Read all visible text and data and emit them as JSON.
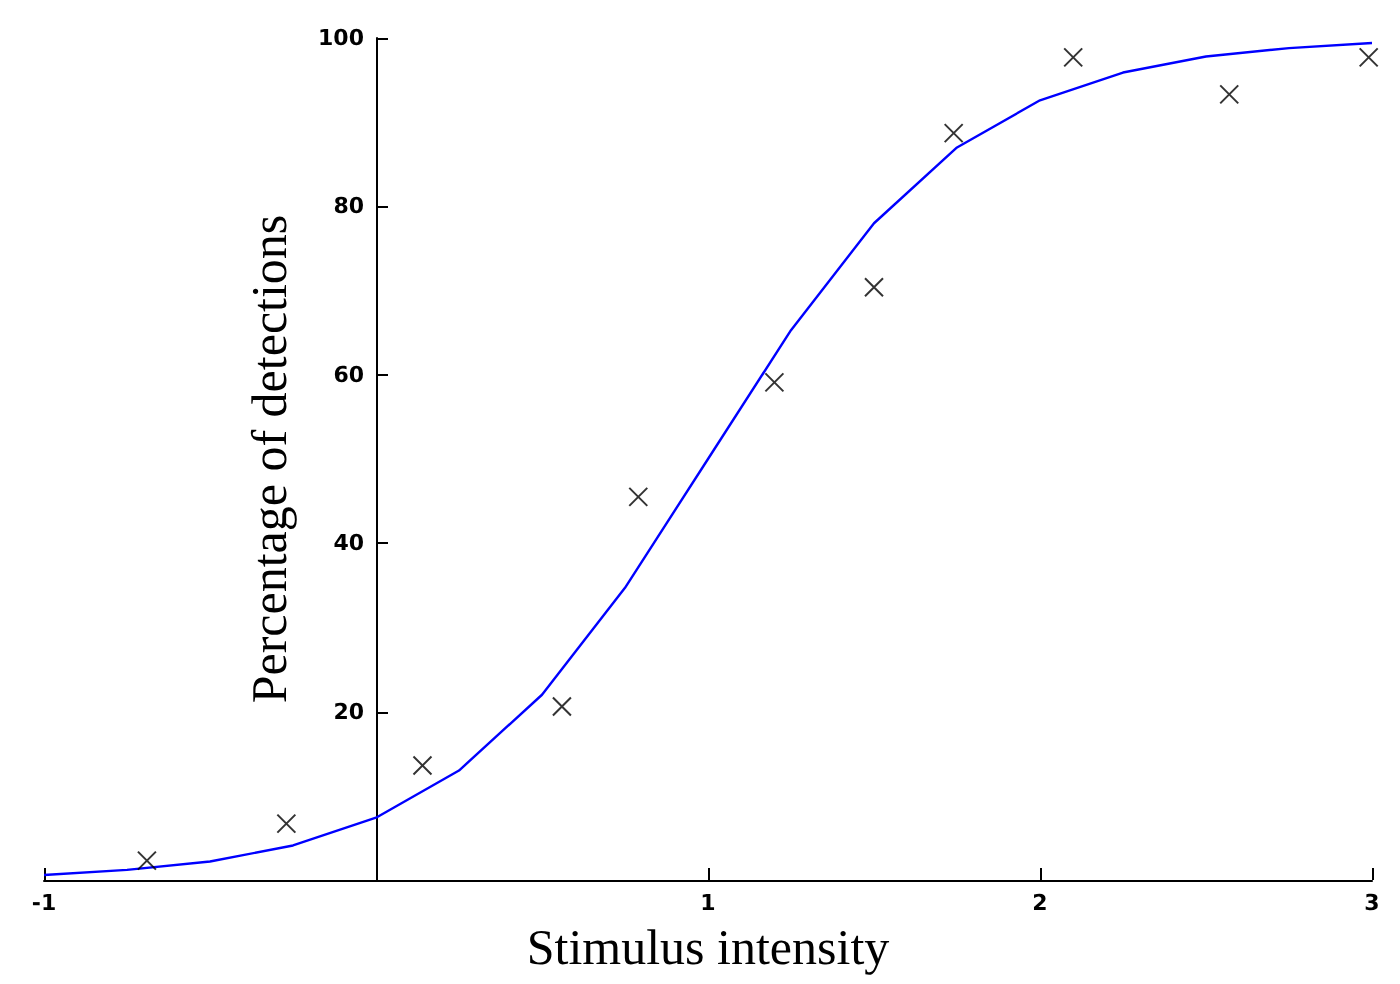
{
  "chart_data": {
    "type": "scatter",
    "xlabel": "Stimulus intensity",
    "ylabel": "Percentage of detections",
    "xlim": [
      -1,
      3
    ],
    "ylim": [
      0,
      100
    ],
    "xticks": [
      -1,
      1,
      2,
      3
    ],
    "yticks": [
      {
        "value": 0,
        "label": null
      },
      20,
      40,
      60,
      80,
      100
    ],
    "grid": false,
    "series": [
      {
        "marker": "cross",
        "color": "#000000",
        "x": [
          -0.69,
          -0.27,
          0.14,
          0.56,
          0.79,
          1.2,
          1.5,
          1.74,
          2.1,
          2.57,
          2.99
        ],
        "values": [
          2.3,
          6.7,
          13.6,
          20.6,
          45.5,
          59.1,
          70.4,
          88.7,
          97.7,
          93.3,
          97.7
        ]
      },
      {
        "type": "line",
        "marker": "none",
        "color": "#0000ff",
        "x": [
          -1,
          -0.75,
          -0.5,
          -0.25,
          0,
          0.25,
          0.5,
          0.75,
          1,
          1.25,
          1.5,
          1.75,
          2,
          2.25,
          2.5,
          2.75,
          3
        ],
        "values": [
          0.6,
          1.2,
          2.2,
          4.1,
          7.4,
          13,
          22,
          34.7,
          50,
          65.3,
          78,
          87,
          92.6,
          95.9,
          97.8,
          98.8,
          99.4
        ]
      }
    ]
  }
}
